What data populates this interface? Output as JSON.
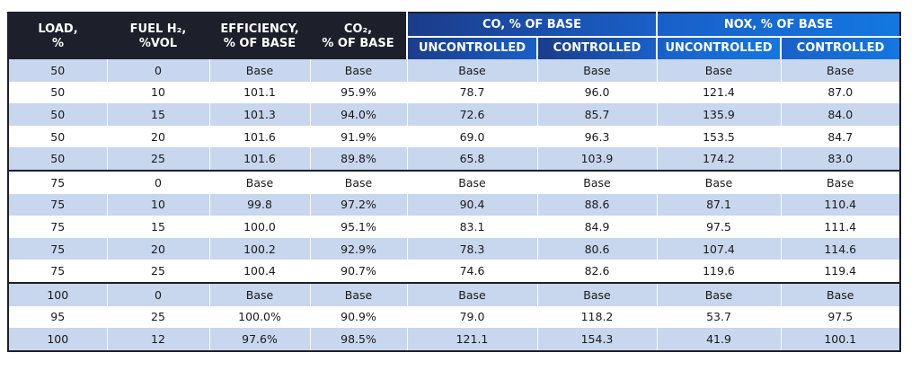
{
  "table": {
    "headers": {
      "load": [
        "LOAD,",
        "%"
      ],
      "fuel": [
        "FUEL H₂,",
        "%VOL"
      ],
      "efficiency": [
        "EFFICIENCY,",
        "% OF BASE"
      ],
      "co2": [
        "CO₂,",
        "% OF BASE"
      ],
      "co_group": "CO, % OF BASE",
      "nox_group": "NOX, % OF BASE",
      "uncontrolled": "UNCONTROLLED",
      "controlled": "CONTROLLED"
    },
    "rows": [
      [
        "50",
        "0",
        "Base",
        "Base",
        "Base",
        "Base",
        "Base",
        "Base"
      ],
      [
        "50",
        "10",
        "101.1",
        "95.9%",
        "78.7",
        "96.0",
        "121.4",
        "87.0"
      ],
      [
        "50",
        "15",
        "101.3",
        "94.0%",
        "72.6",
        "85.7",
        "135.9",
        "84.0"
      ],
      [
        "50",
        "20",
        "101.6",
        "91.9%",
        "69.0",
        "96.3",
        "153.5",
        "84.7"
      ],
      [
        "50",
        "25",
        "101.6",
        "89.8%",
        "65.8",
        "103.9",
        "174.2",
        "83.0"
      ],
      [
        "75",
        "0",
        "Base",
        "Base",
        "Base",
        "Base",
        "Base",
        "Base"
      ],
      [
        "75",
        "10",
        "99.8",
        "97.2%",
        "90.4",
        "88.6",
        "87.1",
        "110.4"
      ],
      [
        "75",
        "15",
        "100.0",
        "95.1%",
        "83.1",
        "84.9",
        "97.5",
        "111.4"
      ],
      [
        "75",
        "20",
        "100.2",
        "92.9%",
        "78.3",
        "80.6",
        "107.4",
        "114.6"
      ],
      [
        "75",
        "25",
        "100.4",
        "90.7%",
        "74.6",
        "82.6",
        "119.6",
        "119.4"
      ],
      [
        "100",
        "0",
        "Base",
        "Base",
        "Base",
        "Base",
        "Base",
        "Base"
      ],
      [
        "95",
        "25",
        "100.0%",
        "90.9%",
        "79.0",
        "118.2",
        "53.7",
        "97.5"
      ],
      [
        "100",
        "12",
        "97.6%",
        "98.5%",
        "121.1",
        "154.3",
        "41.9",
        "100.1"
      ]
    ]
  }
}
